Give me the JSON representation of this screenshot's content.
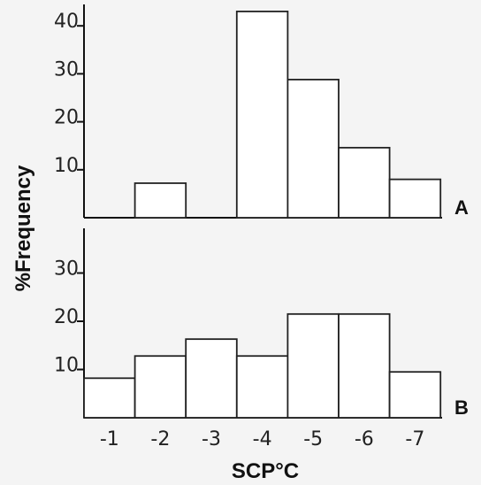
{
  "chart_data": {
    "type": "bar",
    "ylabel": "%Frequency",
    "xlabel": "SCP°C",
    "x_ticks": [
      "-1",
      "-2",
      "-3",
      "-4",
      "-5",
      "-6",
      "-7"
    ],
    "panels": [
      {
        "label": "A",
        "y_ticks": [
          "10",
          "20",
          "30",
          "40"
        ],
        "ylim": [
          0,
          45
        ],
        "values": [
          0,
          7.2,
          0,
          43.0,
          28.8,
          14.6,
          8.0
        ]
      },
      {
        "label": "B",
        "y_ticks": [
          "10",
          "20",
          "30"
        ],
        "ylim": [
          0,
          35
        ],
        "values": [
          8.2,
          12.8,
          16.3,
          12.8,
          21.5,
          21.5,
          9.5
        ]
      }
    ]
  }
}
